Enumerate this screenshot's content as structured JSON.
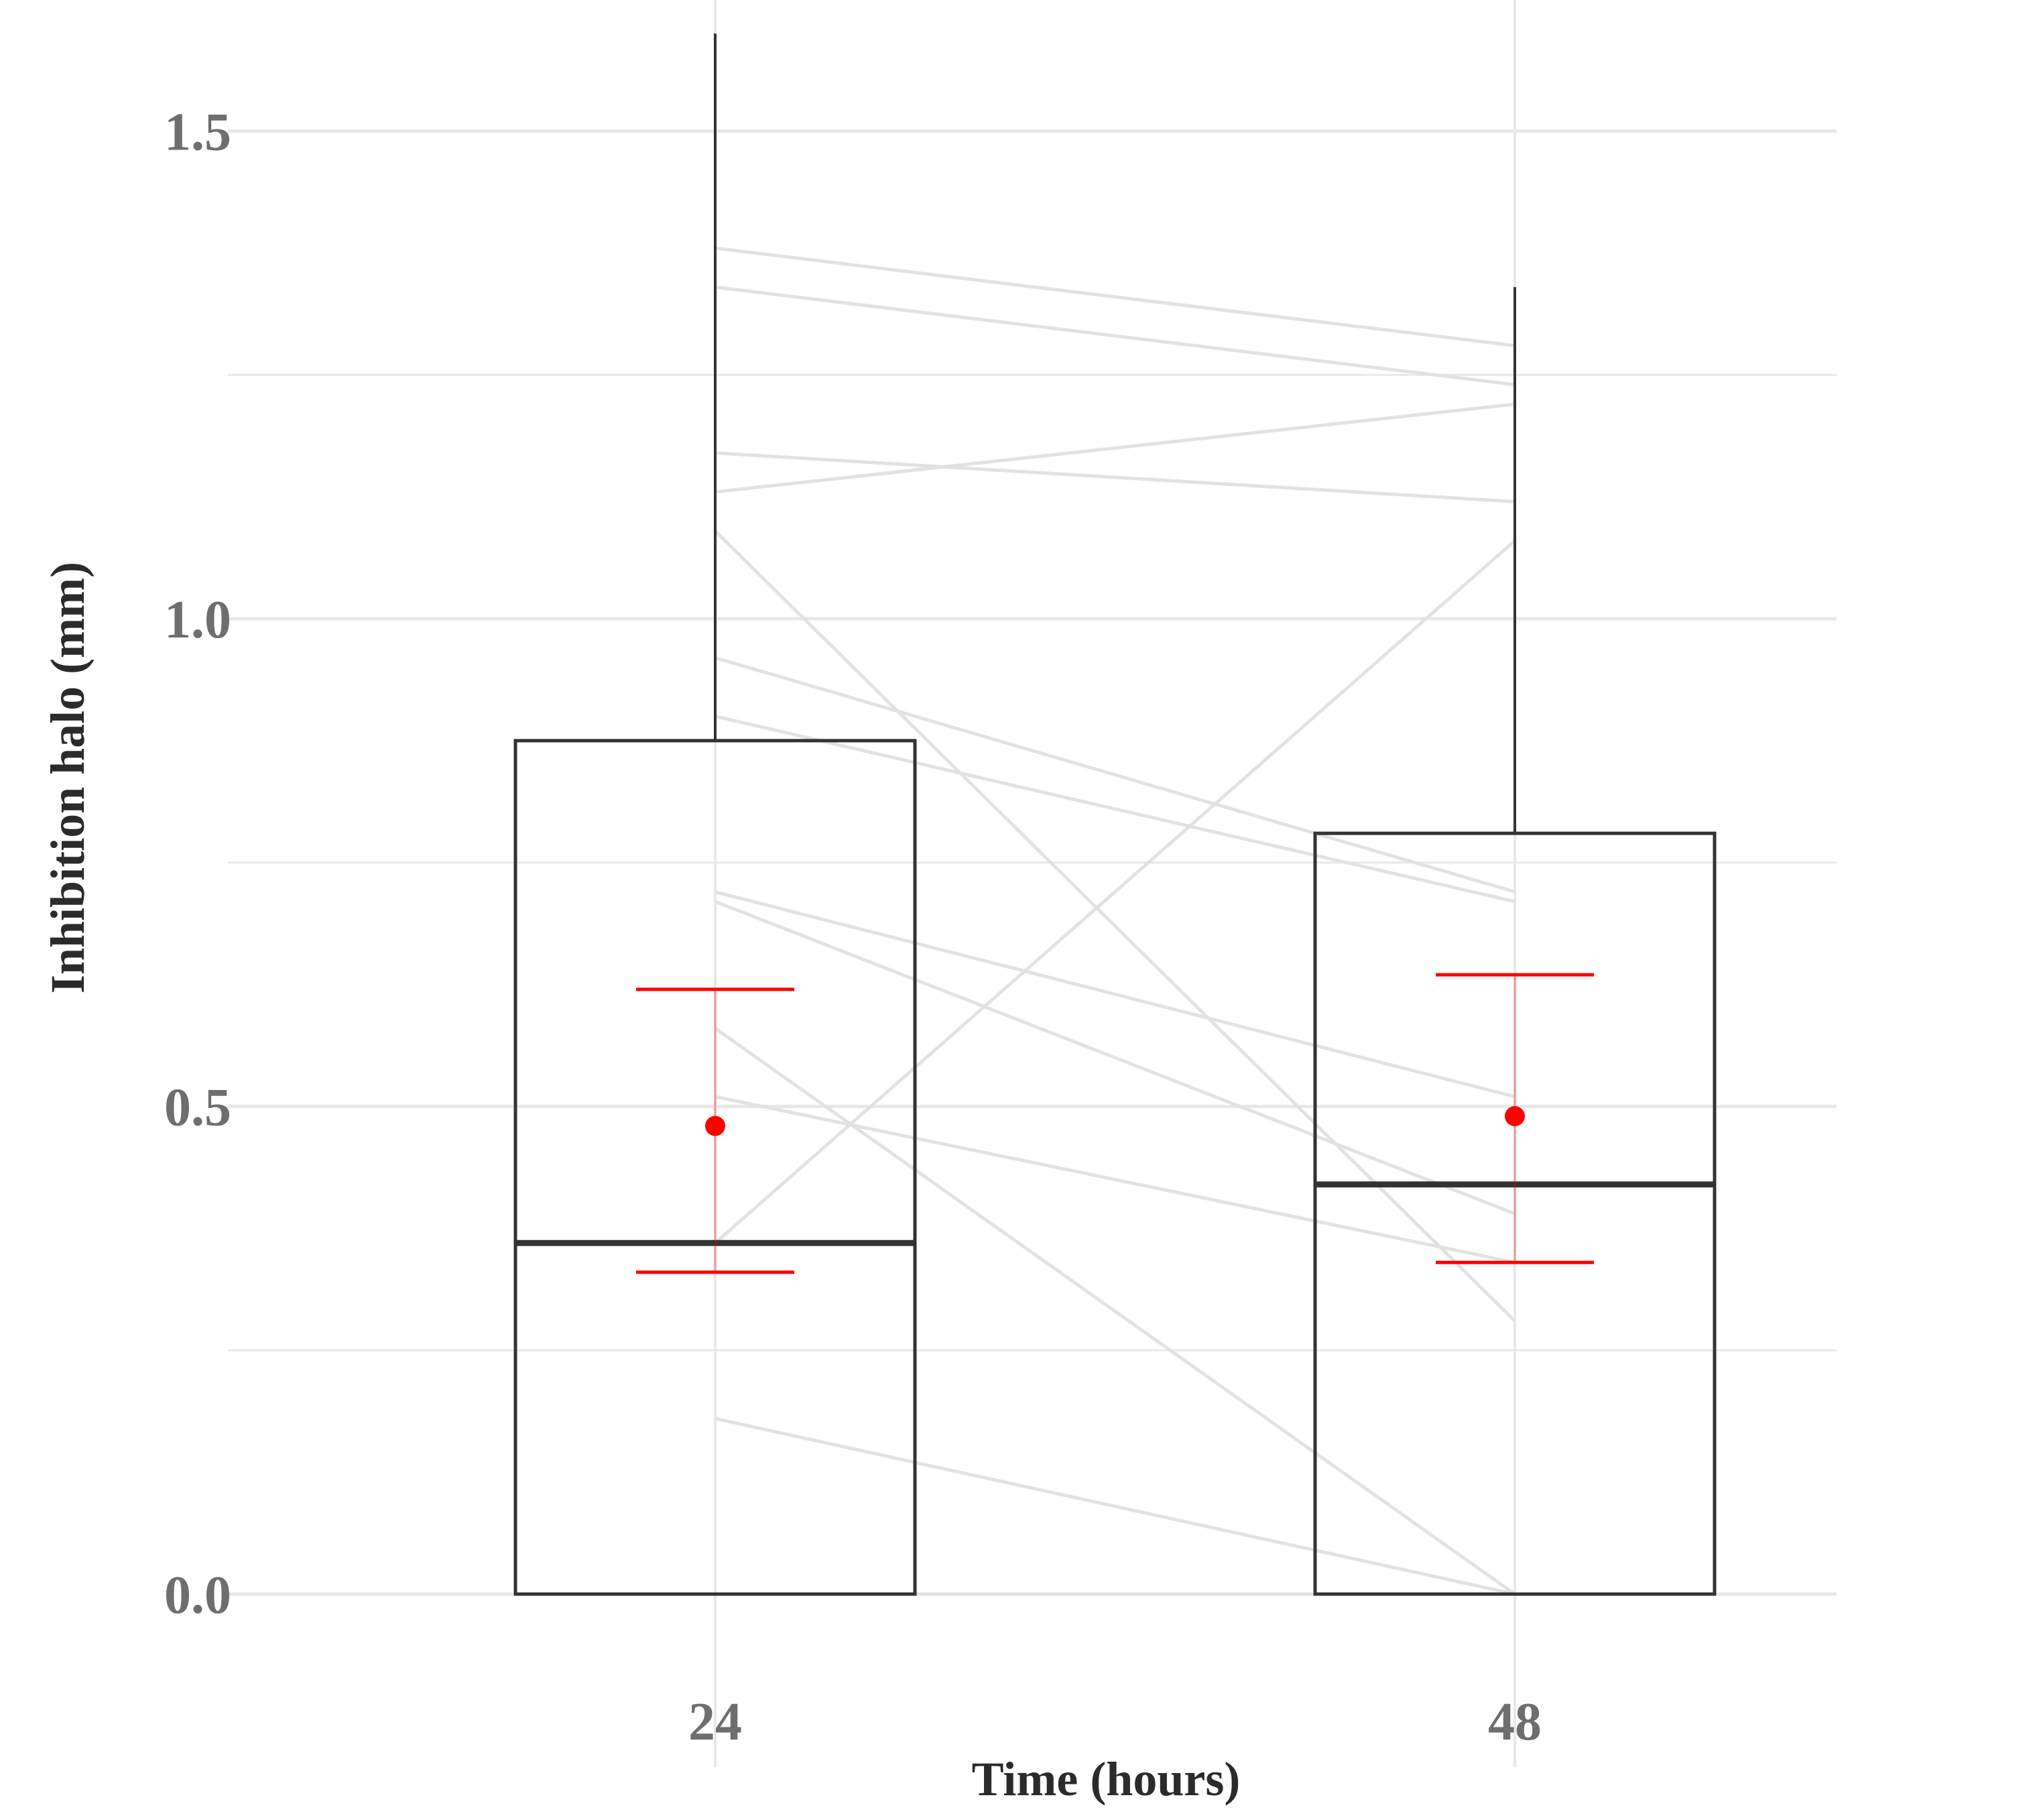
{
  "chart_data": {
    "type": "box",
    "xlabel": "Time (hours)",
    "ylabel": "Inhibition halo (mm)",
    "categories": [
      "24",
      "48"
    ],
    "ylim": [
      -0.15,
      1.66
    ],
    "y_ticks": [
      {
        "value": 0.0,
        "label": "0.0"
      },
      {
        "value": 0.5,
        "label": "0.5"
      },
      {
        "value": 1.0,
        "label": "1.0"
      },
      {
        "value": 1.5,
        "label": "1.5"
      }
    ],
    "y_minor_gridlines": [
      0.25,
      0.75,
      1.25
    ],
    "grid": true,
    "boxes": [
      {
        "category": "24",
        "min": 0.0,
        "q1": 0.0,
        "median": 0.36,
        "q3": 0.875,
        "max": 1.6
      },
      {
        "category": "48",
        "min": 0.0,
        "q1": 0.0,
        "median": 0.42,
        "q3": 0.78,
        "max": 1.34
      }
    ],
    "mean_ci": [
      {
        "category": "24",
        "mean": 0.48,
        "lower": 0.33,
        "upper": 0.62
      },
      {
        "category": "48",
        "mean": 0.49,
        "lower": 0.34,
        "upper": 0.635
      }
    ],
    "paired_lines": [
      {
        "t24": 1.38,
        "t48": 1.28
      },
      {
        "t24": 1.34,
        "t48": 1.24
      },
      {
        "t24": 1.17,
        "t48": 1.12
      },
      {
        "t24": 1.13,
        "t48": 1.22
      },
      {
        "t24": 1.09,
        "t48": 0.28
      },
      {
        "t24": 0.96,
        "t48": 0.72
      },
      {
        "t24": 0.9,
        "t48": 0.71
      },
      {
        "t24": 0.72,
        "t48": 0.51
      },
      {
        "t24": 0.71,
        "t48": 0.39
      },
      {
        "t24": 0.58,
        "t48": 0.0
      },
      {
        "t24": 0.51,
        "t48": 0.34
      },
      {
        "t24": 0.36,
        "t48": 1.08
      },
      {
        "t24": 0.18,
        "t48": 0.0
      },
      {
        "t24": 0.0,
        "t48": 0.0
      }
    ],
    "colors": {
      "box": "#333333",
      "mean": "#ff0000",
      "paired_line": "#e2e2e2",
      "grid": "#e8e8e8"
    }
  }
}
